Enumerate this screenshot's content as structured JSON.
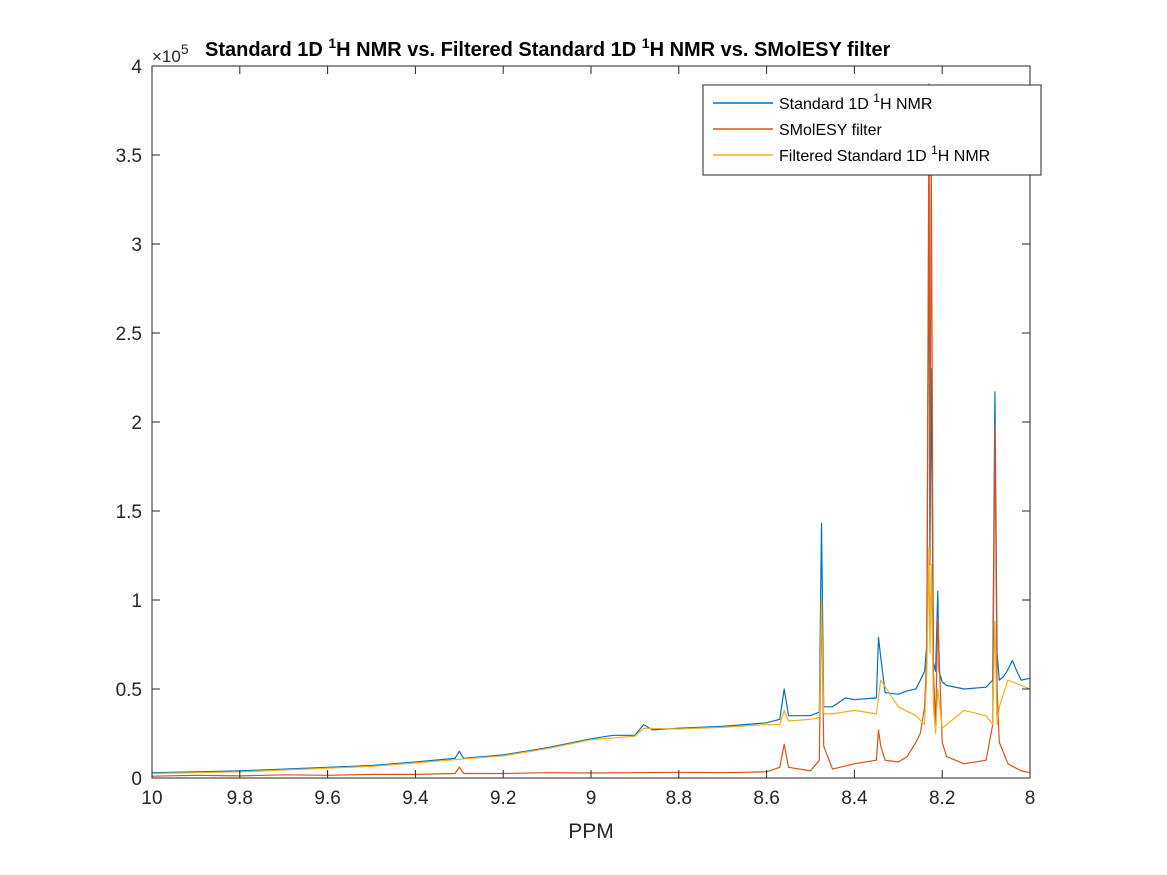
{
  "colors": {
    "standard": "#0072BD",
    "smolesy": "#D95319",
    "filtered": "#EDB120",
    "axis": "#262626"
  },
  "chart_data": {
    "type": "line",
    "title_parts": {
      "pre1": "Standard 1D ",
      "sup1": "1",
      "mid": "H NMR vs. Filtered Standard 1D ",
      "sup2": "1",
      "post": "H NMR vs. SMolESY filter"
    },
    "xlabel": "PPM",
    "ylabel": "",
    "xlim": [
      10,
      8
    ],
    "x_reversed": true,
    "ylim": [
      0,
      400000
    ],
    "y_exponent_label": {
      "times": "×10",
      "power": "5"
    },
    "x_ticks": [
      10,
      9.8,
      9.6,
      9.4,
      9.2,
      9,
      8.8,
      8.6,
      8.4,
      8.2,
      8
    ],
    "x_tick_labels": [
      "10",
      "9.8",
      "9.6",
      "9.4",
      "9.2",
      "9",
      "8.8",
      "8.6",
      "8.4",
      "8.2",
      "8"
    ],
    "y_ticks": [
      0,
      50000,
      100000,
      150000,
      200000,
      250000,
      300000,
      350000,
      400000
    ],
    "y_tick_labels": [
      "0",
      "0.5",
      "1",
      "1.5",
      "2",
      "2.5",
      "3",
      "3.5",
      "4"
    ],
    "grid": false,
    "legend_position": "top-right",
    "legend": [
      {
        "pre": "Standard 1D ",
        "sup": "1",
        "post": "H NMR",
        "color_key": "standard"
      },
      {
        "pre": "SMolESY filter",
        "sup": "",
        "post": "",
        "color_key": "smolesy"
      },
      {
        "pre": "Filtered Standard 1D ",
        "sup": "1",
        "post": "H NMR",
        "color_key": "filtered"
      }
    ],
    "series": [
      {
        "name": "Standard 1D 1H NMR",
        "color_key": "standard",
        "x": [
          10.0,
          9.9,
          9.8,
          9.7,
          9.6,
          9.5,
          9.4,
          9.31,
          9.3,
          9.29,
          9.2,
          9.15,
          9.1,
          9.0,
          8.95,
          8.9,
          8.88,
          8.86,
          8.8,
          8.7,
          8.6,
          8.57,
          8.56,
          8.55,
          8.5,
          8.48,
          8.475,
          8.47,
          8.45,
          8.42,
          8.4,
          8.35,
          8.345,
          8.34,
          8.33,
          8.3,
          8.28,
          8.26,
          8.25,
          8.24,
          8.235,
          8.23,
          8.228,
          8.225,
          8.22,
          8.215,
          8.21,
          8.207,
          8.2,
          8.19,
          8.15,
          8.1,
          8.085,
          8.08,
          8.075,
          8.07,
          8.06,
          8.05,
          8.04,
          8.03,
          8.02,
          8.0
        ],
        "y": [
          3000,
          3500,
          4000,
          5000,
          6000,
          7000,
          9000,
          11000,
          15000,
          11000,
          13000,
          15000,
          17000,
          22000,
          24000,
          24000,
          30000,
          27000,
          28000,
          29000,
          31000,
          33000,
          50000,
          35000,
          35000,
          37000,
          143000,
          40000,
          40000,
          45000,
          44000,
          45000,
          79000,
          68000,
          48000,
          47000,
          49000,
          50000,
          55000,
          60000,
          75000,
          340000,
          120000,
          230000,
          65000,
          60000,
          105000,
          60000,
          54000,
          52000,
          50000,
          51000,
          55000,
          217000,
          70000,
          55000,
          57000,
          61000,
          66000,
          60000,
          55000,
          56000
        ]
      },
      {
        "name": "SMolESY filter",
        "color_key": "smolesy",
        "x": [
          10.0,
          9.9,
          9.8,
          9.7,
          9.6,
          9.5,
          9.4,
          9.31,
          9.3,
          9.29,
          9.2,
          9.1,
          9.0,
          8.9,
          8.8,
          8.7,
          8.6,
          8.57,
          8.56,
          8.55,
          8.5,
          8.48,
          8.475,
          8.47,
          8.45,
          8.4,
          8.35,
          8.345,
          8.34,
          8.33,
          8.3,
          8.28,
          8.26,
          8.25,
          8.24,
          8.235,
          8.23,
          8.228,
          8.225,
          8.22,
          8.215,
          8.21,
          8.2,
          8.19,
          8.15,
          8.1,
          8.085,
          8.08,
          8.075,
          8.07,
          8.05,
          8.02,
          8.0
        ],
        "y": [
          1000,
          1500,
          1200,
          1800,
          1500,
          2000,
          2000,
          2500,
          6000,
          2500,
          2500,
          3000,
          2800,
          3000,
          3200,
          3000,
          3500,
          6000,
          19000,
          6000,
          4000,
          10000,
          100000,
          18000,
          5000,
          8000,
          10000,
          27000,
          18000,
          10000,
          9000,
          12000,
          20000,
          25000,
          40000,
          70000,
          390000,
          120000,
          360000,
          60000,
          30000,
          90000,
          20000,
          12000,
          8000,
          10000,
          30000,
          198000,
          50000,
          20000,
          8000,
          4000,
          3000
        ]
      },
      {
        "name": "Filtered Standard 1D 1H NMR",
        "color_key": "filtered",
        "x": [
          10.0,
          9.9,
          9.8,
          9.7,
          9.6,
          9.5,
          9.4,
          9.3,
          9.2,
          9.1,
          9.0,
          8.9,
          8.88,
          8.8,
          8.7,
          8.6,
          8.57,
          8.56,
          8.55,
          8.5,
          8.48,
          8.475,
          8.47,
          8.45,
          8.4,
          8.35,
          8.34,
          8.3,
          8.26,
          8.24,
          8.235,
          8.23,
          8.228,
          8.225,
          8.22,
          8.215,
          8.21,
          8.2,
          8.15,
          8.1,
          8.085,
          8.08,
          8.075,
          8.07,
          8.05,
          8.02,
          8.0
        ],
        "y": [
          2500,
          3000,
          3500,
          4500,
          5500,
          6500,
          8500,
          10500,
          12500,
          16500,
          21500,
          23500,
          28000,
          27500,
          28500,
          30000,
          30000,
          38000,
          32000,
          33000,
          34000,
          100000,
          36000,
          36000,
          38000,
          36000,
          55000,
          40000,
          35000,
          30000,
          60000,
          130000,
          70000,
          120000,
          40000,
          25000,
          50000,
          28000,
          38000,
          35000,
          30000,
          88000,
          30000,
          40000,
          55000,
          52000,
          50000
        ]
      }
    ]
  }
}
